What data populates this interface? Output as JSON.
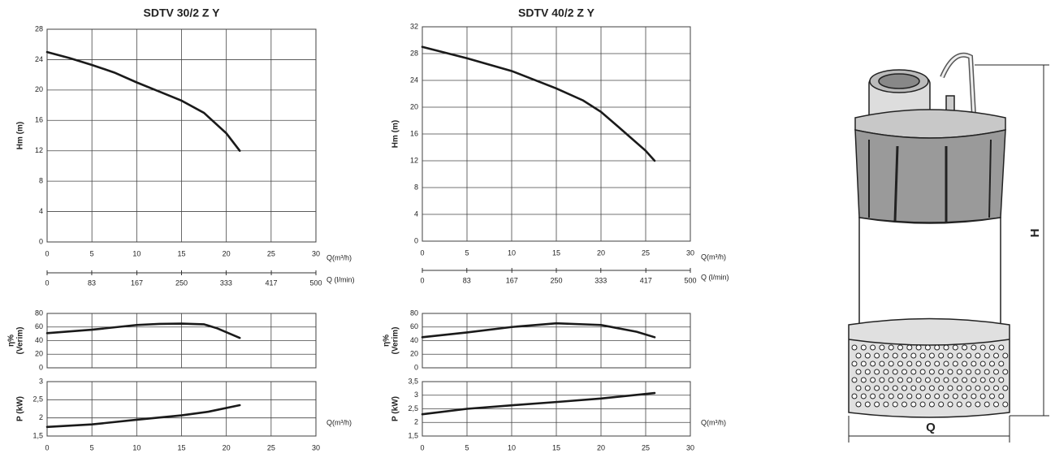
{
  "chart_data": [
    {
      "type": "line",
      "title": "SDTV 30/2 Z Y",
      "ylabel": [
        "Hm (m)"
      ],
      "xlabel": "Q(m³/h)",
      "color": "#1a1a1a",
      "grid": true,
      "x": [
        0,
        2.5,
        5,
        7.5,
        10,
        12.5,
        15,
        17.5,
        20,
        21.5
      ],
      "values": [
        25,
        24.2,
        23.3,
        22.3,
        21,
        19.8,
        18.6,
        17,
        14.3,
        12
      ],
      "xlim": [
        0,
        30
      ],
      "ylim": [
        0,
        28
      ],
      "xticks": [
        0,
        5,
        10,
        15,
        20,
        25,
        30
      ],
      "yticks": [
        0,
        4,
        8,
        12,
        16,
        20,
        24,
        28
      ],
      "x2label": "Q (l/min)",
      "x2lim": [
        0,
        500
      ],
      "x2ticks": [
        0,
        83,
        167,
        250,
        333,
        417,
        500
      ]
    },
    {
      "type": "line",
      "ylabel": [
        "η%",
        "(Verim)"
      ],
      "color": "#1a1a1a",
      "grid": true,
      "show_xtick_labels": false,
      "x": [
        0,
        5,
        10,
        12.5,
        15,
        17.5,
        19,
        21.5
      ],
      "values": [
        51,
        56,
        63,
        64.5,
        65,
        64,
        58,
        44
      ],
      "xlim": [
        0,
        30
      ],
      "ylim": [
        0,
        80
      ],
      "xticks": [
        0,
        5,
        10,
        15,
        20,
        25,
        30
      ],
      "yticks": [
        0,
        20,
        40,
        60,
        80
      ]
    },
    {
      "type": "line",
      "ylabel": [
        "P  (kW)"
      ],
      "xlabel": "Q(m³/h)",
      "color": "#1a1a1a",
      "grid": true,
      "x": [
        0,
        5,
        10,
        15,
        18,
        21.5
      ],
      "values": [
        1.75,
        1.82,
        1.95,
        2.07,
        2.17,
        2.35
      ],
      "xlim": [
        0,
        30
      ],
      "ylim": [
        1.5,
        3
      ],
      "xticks": [
        0,
        5,
        10,
        15,
        20,
        25,
        30
      ],
      "yticks": [
        {
          "value": 1.5,
          "label": "1,5"
        },
        2,
        {
          "value": 2.5,
          "label": "2,5"
        },
        3
      ]
    },
    {
      "type": "line",
      "title": "SDTV 40/2 Z Y",
      "ylabel": [
        "Hm (m)"
      ],
      "xlabel": "Q(m³/h)",
      "color": "#1a1a1a",
      "grid": true,
      "x": [
        0,
        5,
        10,
        15,
        18,
        20,
        22,
        25,
        26
      ],
      "values": [
        29,
        27.3,
        25.4,
        22.8,
        21,
        19.3,
        17,
        13.5,
        12
      ],
      "xlim": [
        0,
        30
      ],
      "ylim": [
        0,
        32
      ],
      "xticks": [
        0,
        5,
        10,
        15,
        20,
        25,
        30
      ],
      "yticks": [
        0,
        4,
        8,
        12,
        16,
        20,
        24,
        28,
        32
      ],
      "x2label": "Q (l/min)",
      "x2lim": [
        0,
        500
      ],
      "x2ticks": [
        0,
        83,
        167,
        250,
        333,
        417,
        500
      ]
    },
    {
      "type": "line",
      "ylabel": [
        "η%",
        "(Verim)"
      ],
      "color": "#1a1a1a",
      "grid": true,
      "show_xtick_labels": false,
      "x": [
        0,
        5,
        10,
        15,
        20,
        24,
        26
      ],
      "values": [
        45,
        52,
        60,
        65.5,
        63,
        53,
        45
      ],
      "xlim": [
        0,
        30
      ],
      "ylim": [
        0,
        80
      ],
      "xticks": [
        0,
        5,
        10,
        15,
        20,
        25,
        30
      ],
      "yticks": [
        0,
        20,
        40,
        60,
        80
      ]
    },
    {
      "type": "line",
      "ylabel": [
        "P  (kW)"
      ],
      "xlabel": "Q(m³/h)",
      "color": "#1a1a1a",
      "grid": true,
      "x": [
        0,
        5,
        10,
        15,
        20,
        26
      ],
      "values": [
        2.3,
        2.5,
        2.63,
        2.75,
        2.88,
        3.08
      ],
      "xlim": [
        0,
        30
      ],
      "ylim": [
        1.5,
        3.5
      ],
      "xticks": [
        0,
        5,
        10,
        15,
        20,
        25,
        30
      ],
      "yticks": [
        {
          "value": 1.5,
          "label": "1,5"
        },
        2,
        {
          "value": 2.5,
          "label": "2,5"
        },
        3,
        {
          "value": 3.5,
          "label": "3,5"
        }
      ]
    }
  ],
  "diagram": {
    "height_label": "H",
    "width_label": "Q"
  }
}
